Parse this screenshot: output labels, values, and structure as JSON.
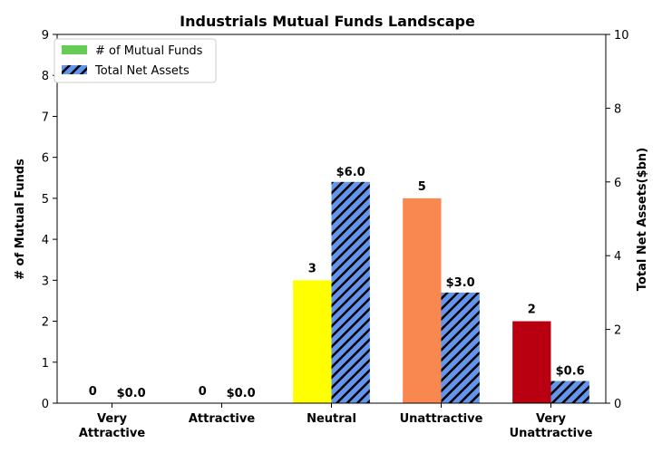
{
  "chart_data": {
    "type": "bar",
    "title": "Industrials Mutual Funds Landscape",
    "categories": [
      "Very\nAttractive",
      "Attractive",
      "Neutral",
      "Unattractive",
      "Very\nUnattractive"
    ],
    "ylabel_left": "# of Mutual Funds",
    "ylabel_right": "Total Net Assets($bn)",
    "ylim_left": [
      0,
      9
    ],
    "ylim_right": [
      0,
      10
    ],
    "yticks_left": [
      "0",
      "1",
      "2",
      "3",
      "4",
      "5",
      "6",
      "7",
      "8",
      "9"
    ],
    "yticks_right": [
      "0",
      "2",
      "4",
      "6",
      "8",
      "10"
    ],
    "series": [
      {
        "name": "# of Mutual Funds",
        "axis": "left",
        "values": [
          0,
          0,
          3,
          5,
          2
        ],
        "labels": [
          "0",
          "0",
          "3",
          "5",
          "2"
        ],
        "colors": [
          "#00a000",
          "#66cc44",
          "#ffff00",
          "#f98850",
          "#b80010"
        ],
        "legend_color": "#66cc55"
      },
      {
        "name": "Total Net Assets",
        "axis": "right",
        "values": [
          0.0,
          0.0,
          6.0,
          3.0,
          0.6
        ],
        "labels": [
          "$0.0",
          "$0.0",
          "$6.0",
          "$3.0",
          "$0.6"
        ],
        "color": "#6495ed",
        "hatch": true
      }
    ],
    "legend_position": "top-left",
    "grid": false
  }
}
